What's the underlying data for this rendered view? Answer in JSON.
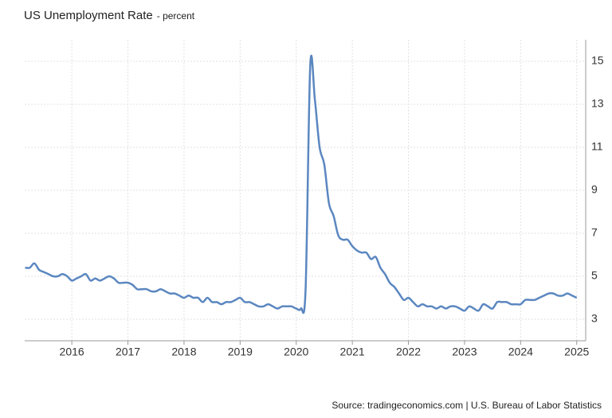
{
  "chart_data": {
    "type": "line",
    "title": "US Unemployment Rate",
    "subtitle": "- percent",
    "source": "Source: tradingeconomics.com | U.S. Bureau of Labor Statistics",
    "grid": true,
    "xlim": [
      2015.16,
      2025.16
    ],
    "xticks": [
      2016,
      2017,
      2018,
      2019,
      2020,
      2021,
      2022,
      2023,
      2024,
      2025
    ],
    "ylim": [
      2,
      16
    ],
    "yticks": [
      3,
      5,
      7,
      9,
      11,
      13,
      15
    ],
    "x": [
      2015.167,
      2015.25,
      2015.333,
      2015.417,
      2015.5,
      2015.583,
      2015.667,
      2015.75,
      2015.833,
      2015.917,
      2016,
      2016.083,
      2016.167,
      2016.25,
      2016.333,
      2016.417,
      2016.5,
      2016.583,
      2016.667,
      2016.75,
      2016.833,
      2016.917,
      2017,
      2017.083,
      2017.167,
      2017.25,
      2017.333,
      2017.417,
      2017.5,
      2017.583,
      2017.667,
      2017.75,
      2017.833,
      2017.917,
      2018,
      2018.083,
      2018.167,
      2018.25,
      2018.333,
      2018.417,
      2018.5,
      2018.583,
      2018.667,
      2018.75,
      2018.833,
      2018.917,
      2019,
      2019.083,
      2019.167,
      2019.25,
      2019.333,
      2019.417,
      2019.5,
      2019.583,
      2019.667,
      2019.75,
      2019.833,
      2019.917,
      2020,
      2020.083,
      2020.167,
      2020.25,
      2020.333,
      2020.417,
      2020.5,
      2020.583,
      2020.667,
      2020.75,
      2020.833,
      2020.917,
      2021,
      2021.083,
      2021.167,
      2021.25,
      2021.333,
      2021.417,
      2021.5,
      2021.583,
      2021.667,
      2021.75,
      2021.833,
      2021.917,
      2022,
      2022.083,
      2022.167,
      2022.25,
      2022.333,
      2022.417,
      2022.5,
      2022.583,
      2022.667,
      2022.75,
      2022.833,
      2022.917,
      2023,
      2023.083,
      2023.167,
      2023.25,
      2023.333,
      2023.417,
      2023.5,
      2023.583,
      2023.667,
      2023.75,
      2023.833,
      2023.917,
      2024,
      2024.083,
      2024.167,
      2024.25,
      2024.333,
      2024.417,
      2024.5,
      2024.583,
      2024.667,
      2024.75,
      2024.833,
      2024.917,
      2025
    ],
    "series": [
      {
        "name": "US Unemployment Rate",
        "color": "#5b87c0",
        "values": [
          5.4,
          5.4,
          5.6,
          5.3,
          5.2,
          5.1,
          5.0,
          5.0,
          5.1,
          5.0,
          4.8,
          4.9,
          5.0,
          5.1,
          4.8,
          4.9,
          4.8,
          4.9,
          5.0,
          4.9,
          4.7,
          4.7,
          4.7,
          4.6,
          4.4,
          4.4,
          4.4,
          4.3,
          4.3,
          4.4,
          4.3,
          4.2,
          4.2,
          4.1,
          4.0,
          4.1,
          4.0,
          4.0,
          3.8,
          4.0,
          3.8,
          3.8,
          3.7,
          3.8,
          3.8,
          3.9,
          4.0,
          3.8,
          3.8,
          3.7,
          3.6,
          3.6,
          3.7,
          3.6,
          3.5,
          3.6,
          3.6,
          3.6,
          3.5,
          3.5,
          4.4,
          14.8,
          13.2,
          11.0,
          10.2,
          8.4,
          7.8,
          6.9,
          6.7,
          6.7,
          6.4,
          6.2,
          6.1,
          6.1,
          5.8,
          5.9,
          5.4,
          5.1,
          4.7,
          4.5,
          4.2,
          3.9,
          4.0,
          3.8,
          3.6,
          3.7,
          3.6,
          3.6,
          3.5,
          3.6,
          3.5,
          3.6,
          3.6,
          3.5,
          3.4,
          3.6,
          3.5,
          3.4,
          3.7,
          3.6,
          3.5,
          3.8,
          3.8,
          3.8,
          3.7,
          3.7,
          3.7,
          3.9,
          3.9,
          3.9,
          4.0,
          4.1,
          4.2,
          4.2,
          4.1,
          4.1,
          4.2,
          4.1,
          4.0
        ]
      }
    ]
  }
}
